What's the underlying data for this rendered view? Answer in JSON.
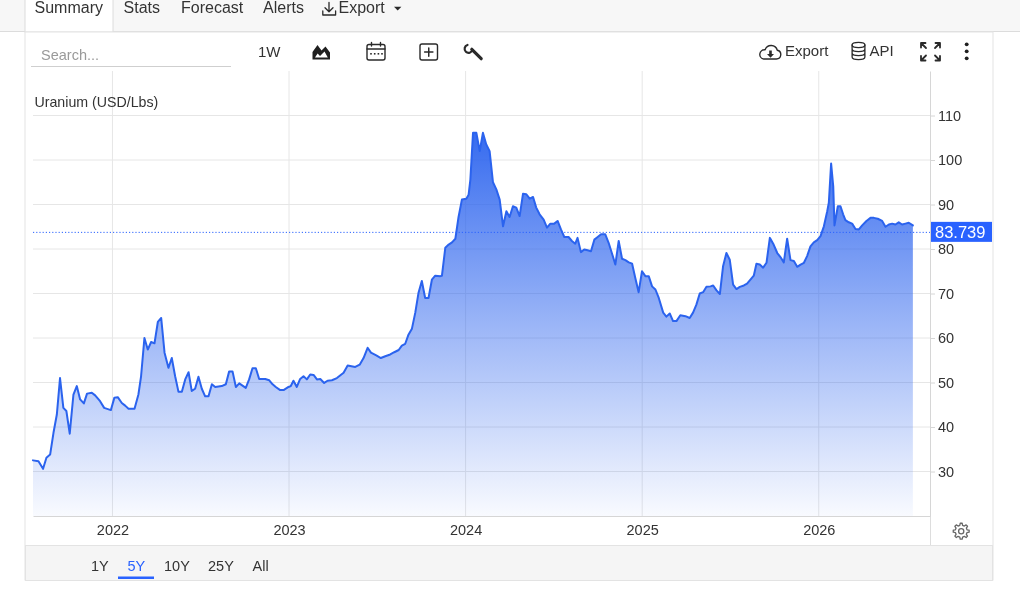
{
  "chart_data": {
    "type": "area",
    "title": "Uranium (USD/Lbs)",
    "x": [
      2021.55,
      2021.581,
      2021.607,
      2021.626,
      2021.647,
      2021.666,
      2021.685,
      2021.703,
      2021.722,
      2021.739,
      2021.758,
      2021.779,
      2021.798,
      2021.817,
      2021.838,
      2021.856,
      2021.883,
      2021.902,
      2021.93,
      2021.953,
      2021.991,
      2022.011,
      2022.03,
      2022.053,
      2022.072,
      2022.091,
      2022.125,
      2022.147,
      2022.162,
      2022.181,
      2022.2,
      2022.219,
      2022.238,
      2022.257,
      2022.276,
      2022.295,
      2022.317,
      2022.336,
      2022.355,
      2022.374,
      2022.393,
      2022.412,
      2022.431,
      2022.449,
      2022.468,
      2022.487,
      2022.506,
      2022.525,
      2022.544,
      2022.563,
      2022.582,
      2022.619,
      2022.642,
      2022.661,
      2022.68,
      2022.699,
      2022.718,
      2022.755,
      2022.774,
      2022.793,
      2022.812,
      2022.831,
      2022.865,
      2022.888,
      2022.907,
      2022.925,
      2022.95,
      2022.969,
      2022.997,
      2023.01,
      2023.025,
      2023.044,
      2023.063,
      2023.082,
      2023.101,
      2023.12,
      2023.139,
      2023.158,
      2023.177,
      2023.199,
      2023.218,
      2023.243,
      2023.271,
      2023.309,
      2023.332,
      2023.375,
      2023.4,
      2023.422,
      2023.445,
      2023.464,
      2023.494,
      2023.52,
      2023.545,
      2023.573,
      2023.596,
      2023.621,
      2023.639,
      2023.658,
      2023.677,
      2023.696,
      2023.715,
      2023.733,
      2023.752,
      2023.771,
      2023.79,
      2023.809,
      2023.828,
      2023.857,
      2023.866,
      2023.885,
      2023.904,
      2023.923,
      2023.942,
      2023.96,
      2023.979,
      2024.004,
      2024.017,
      2024.027,
      2024.042,
      2024.061,
      2024.08,
      2024.098,
      2024.117,
      2024.136,
      2024.155,
      2024.174,
      2024.193,
      2024.212,
      2024.231,
      2024.249,
      2024.268,
      2024.287,
      2024.306,
      2024.325,
      2024.344,
      2024.363,
      2024.382,
      2024.4,
      2024.419,
      2024.442,
      2024.461,
      2024.48,
      2024.502,
      2024.521,
      2024.54,
      2024.559,
      2024.583,
      2024.602,
      2024.621,
      2024.634,
      2024.653,
      2024.672,
      2024.691,
      2024.71,
      2024.729,
      2024.748,
      2024.767,
      2024.791,
      2024.81,
      2024.829,
      2024.848,
      2024.867,
      2024.886,
      2024.905,
      2024.924,
      2024.943,
      2024.961,
      2024.98,
      2024.999,
      2025.018,
      2025.037,
      2025.056,
      2025.075,
      2025.094,
      2025.119,
      2025.137,
      2025.156,
      2025.175,
      2025.194,
      2025.216,
      2025.245,
      2025.269,
      2025.288,
      2025.307,
      2025.326,
      2025.345,
      2025.364,
      2025.387,
      2025.402,
      2025.421,
      2025.44,
      2025.458,
      2025.477,
      2025.496,
      2025.515,
      2025.534,
      2025.553,
      2025.576,
      2025.594,
      2025.613,
      2025.632,
      2025.647,
      2025.666,
      2025.685,
      2025.704,
      2025.723,
      2025.742,
      2025.765,
      2025.783,
      2025.802,
      2025.821,
      2025.84,
      2025.859,
      2025.878,
      2025.897,
      2025.916,
      2025.934,
      2025.953,
      2025.972,
      2025.991,
      2026.01,
      2026.029,
      2026.048,
      2026.057,
      2026.07,
      2026.082,
      2026.089,
      2026.108,
      2026.123,
      2026.138,
      2026.151,
      2026.17,
      2026.189,
      2026.208,
      2026.227,
      2026.246,
      2026.27,
      2026.293,
      2026.312,
      2026.334,
      2026.359,
      2026.378,
      2026.397,
      2026.416,
      2026.434,
      2026.453,
      2026.472,
      2026.491,
      2026.51,
      2026.533
    ],
    "values": [
      32.5,
      32.3,
      30.6,
      33.1,
      33.8,
      38.7,
      42.8,
      51.0,
      44.3,
      43.6,
      38.5,
      47.3,
      49.2,
      46.2,
      45.3,
      47.5,
      47.7,
      47.1,
      45.8,
      44.3,
      43.8,
      46.6,
      46.7,
      45.4,
      44.8,
      44.1,
      44.1,
      47.3,
      51.4,
      60.0,
      57.4,
      59.1,
      58.8,
      63.6,
      64.5,
      56.7,
      53.3,
      55.5,
      51.4,
      47.9,
      47.9,
      50.7,
      52.3,
      48.1,
      48.6,
      51.3,
      48.6,
      46.9,
      46.9,
      49.6,
      49.0,
      49.2,
      49.6,
      52.5,
      52.5,
      49.0,
      49.8,
      48.8,
      50.7,
      53.2,
      53.2,
      50.8,
      50.8,
      50.5,
      49.6,
      49.0,
      48.3,
      48.3,
      49.0,
      49.2,
      50.4,
      49.0,
      50.8,
      51.4,
      50.7,
      51.8,
      51.7,
      50.7,
      50.8,
      49.9,
      50.4,
      50.5,
      51.0,
      52.2,
      53.8,
      53.5,
      54.0,
      55.5,
      57.8,
      56.7,
      56.1,
      55.5,
      55.9,
      56.3,
      56.8,
      57.3,
      58.3,
      58.7,
      60.8,
      62.1,
      65.7,
      70.1,
      72.8,
      69.0,
      69.0,
      73.1,
      74.0,
      73.9,
      74.0,
      80.3,
      81.0,
      81.5,
      82.3,
      87.2,
      91.1,
      91.3,
      92.2,
      95.6,
      106.1,
      106.1,
      102.0,
      106.1,
      103.5,
      102.0,
      95.0,
      93.4,
      91.1,
      85.1,
      88.5,
      87.2,
      89.6,
      89.3,
      87.4,
      92.4,
      92.3,
      91.3,
      91.7,
      89.3,
      87.8,
      86.6,
      84.8,
      85.7,
      85.7,
      86.3,
      84.4,
      82.7,
      82.7,
      81.8,
      81.2,
      82.5,
      79.3,
      79.9,
      79.7,
      79.5,
      82.1,
      82.7,
      83.3,
      83.3,
      81.4,
      79.0,
      76.5,
      81.8,
      77.8,
      77.5,
      77.0,
      76.7,
      73.5,
      70.3,
      75.0,
      73.9,
      73.9,
      71.6,
      70.9,
      69.0,
      65.7,
      64.8,
      65.5,
      63.8,
      63.8,
      65.1,
      64.9,
      64.5,
      65.7,
      67.5,
      70.0,
      70.3,
      71.5,
      71.6,
      71.8,
      70.7,
      69.9,
      76.1,
      79.1,
      77.6,
      72.0,
      71.0,
      71.5,
      71.8,
      72.2,
      73.1,
      74.0,
      76.7,
      76.5,
      75.8,
      76.9,
      82.5,
      81.2,
      79.1,
      78.2,
      77.0,
      82.3,
      77.5,
      77.3,
      76.0,
      76.5,
      76.9,
      78.4,
      80.6,
      81.5,
      82.0,
      82.9,
      85.1,
      88.5,
      90.4,
      99.2,
      94.1,
      85.3,
      89.6,
      89.6,
      87.8,
      86.5,
      86.0,
      85.7,
      84.5,
      84.4,
      85.3,
      86.3,
      87.0,
      87.0,
      86.8,
      86.3,
      85.0,
      85.5,
      85.7,
      85.5,
      86.0,
      85.5,
      85.7,
      85.9,
      85.3
    ],
    "color": "#2b63ee",
    "xlim": [
      2021.55,
      2026.63
    ],
    "xticks": [
      2022,
      2023,
      2024,
      2025,
      2026
    ],
    "ylim": [
      20,
      120
    ],
    "yticks": [
      30,
      40,
      50,
      60,
      70,
      80,
      90,
      100,
      110
    ],
    "grid": true,
    "ref_lines": [
      {
        "axis": "y",
        "value": 83.739,
        "label": "83.739",
        "color": "#2962ff",
        "line_style": "dotted"
      }
    ],
    "annotations": [
      "Summary",
      "Stats",
      "Forecast",
      "Alerts",
      "Export",
      "Search...",
      "1W",
      "Export",
      "API",
      "1Y",
      "5Y",
      "10Y",
      "25Y",
      "All"
    ]
  }
}
